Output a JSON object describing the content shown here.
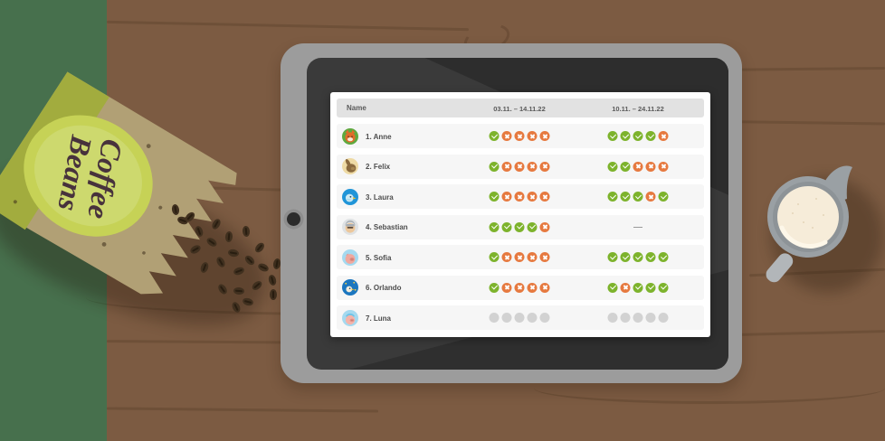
{
  "scene": {
    "bag": {
      "label_line1": "Coffee",
      "label_line2": "Beans"
    },
    "colors": {
      "green": "#7db32c",
      "orange": "#e6793f",
      "dot_gray": "#d2d2d2",
      "wood": "#7c5b42",
      "stripe_green": "#47704d"
    }
  },
  "table": {
    "columns": [
      "Name",
      "03.11. – 14.11.22",
      "10.11. – 24.11.22"
    ],
    "empty_value": "—",
    "rows": [
      {
        "name": "1. Anne",
        "avatar": "fox",
        "period1": [
          "check",
          "x",
          "x",
          "x",
          "x"
        ],
        "period2": [
          "check",
          "check",
          "check",
          "check",
          "x"
        ]
      },
      {
        "name": "2. Felix",
        "avatar": "rabbit",
        "period1": [
          "check",
          "x",
          "x",
          "x",
          "x"
        ],
        "period2": [
          "check",
          "check",
          "x",
          "x",
          "x"
        ]
      },
      {
        "name": "3. Laura",
        "avatar": "bird",
        "period1": [
          "check",
          "x",
          "x",
          "x",
          "x"
        ],
        "period2": [
          "check",
          "check",
          "check",
          "x",
          "check"
        ]
      },
      {
        "name": "4. Sebastian",
        "avatar": "man",
        "period1": [
          "check",
          "check",
          "check",
          "check",
          "x"
        ],
        "period2": [
          "dash"
        ]
      },
      {
        "name": "5. Sofia",
        "avatar": "pig",
        "period1": [
          "check",
          "x",
          "x",
          "x",
          "x"
        ],
        "period2": [
          "check",
          "check",
          "check",
          "check",
          "check"
        ]
      },
      {
        "name": "6. Orlando",
        "avatar": "bird-night",
        "period1": [
          "check",
          "x",
          "x",
          "x",
          "x"
        ],
        "period2": [
          "check",
          "x",
          "check",
          "check",
          "check"
        ]
      },
      {
        "name": "7. Luna",
        "avatar": "pig-luna",
        "period1": [
          "dot",
          "dot",
          "dot",
          "dot",
          "dot"
        ],
        "period2": [
          "dot",
          "dot",
          "dot",
          "dot",
          "dot"
        ]
      }
    ]
  }
}
